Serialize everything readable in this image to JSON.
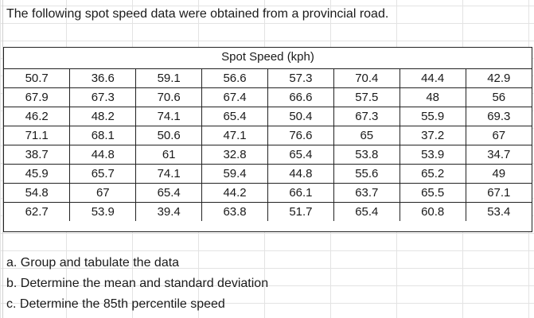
{
  "heading": "The following spot speed data were obtained from a provincial road.",
  "table": {
    "title": "Spot Speed (kph)",
    "rows": [
      [
        "50.7",
        "36.6",
        "59.1",
        "56.6",
        "57.3",
        "70.4",
        "44.4",
        "42.9"
      ],
      [
        "67.9",
        "67.3",
        "70.6",
        "67.4",
        "66.6",
        "57.5",
        "48",
        "56"
      ],
      [
        "46.2",
        "48.2",
        "74.1",
        "65.4",
        "50.4",
        "67.3",
        "55.9",
        "69.3"
      ],
      [
        "71.1",
        "68.1",
        "50.6",
        "47.1",
        "76.6",
        "65",
        "37.2",
        "67"
      ],
      [
        "38.7",
        "44.8",
        "61",
        "32.8",
        "65.4",
        "53.8",
        "53.9",
        "34.7"
      ],
      [
        "45.9",
        "65.7",
        "74.1",
        "59.4",
        "44.8",
        "55.6",
        "65.2",
        "49"
      ],
      [
        "54.8",
        "67",
        "65.4",
        "44.2",
        "66.1",
        "63.7",
        "65.5",
        "67.1"
      ],
      [
        "62.7",
        "53.9",
        "39.4",
        "63.8",
        "51.7",
        "65.4",
        "60.8",
        "53.4"
      ]
    ]
  },
  "questions": [
    "a. Group and tabulate the data",
    "b. Determine the mean and standard deviation",
    "c. Determine the 85th percentile speed"
  ]
}
